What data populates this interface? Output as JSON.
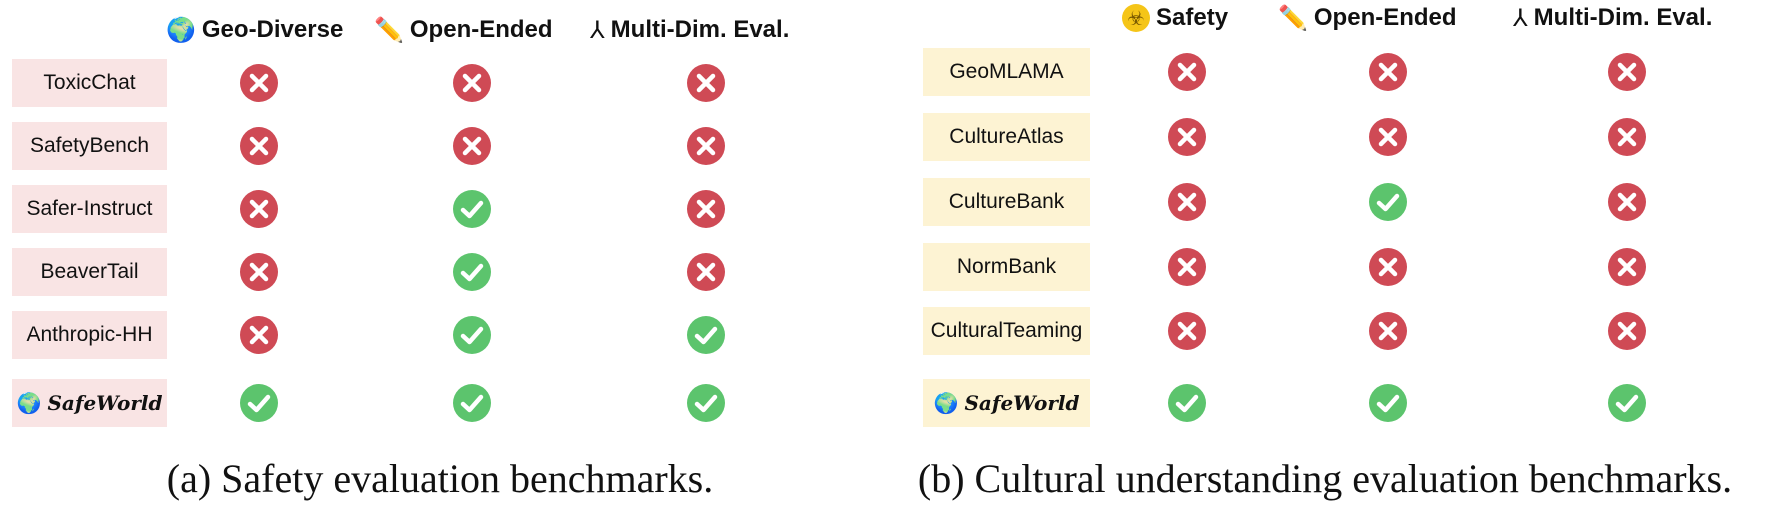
{
  "panel_a": {
    "columns": [
      {
        "icon": "globe-icon",
        "glyph": "🌍",
        "label": "Geo-Diverse"
      },
      {
        "icon": "pencil-icon",
        "glyph": "✏️",
        "label": "Open-Ended"
      },
      {
        "icon": "axes-icon",
        "glyph": "⅄",
        "label": "Multi-Dim. Eval."
      }
    ],
    "rows": [
      {
        "name": "ToxicChat",
        "values": [
          false,
          false,
          false
        ]
      },
      {
        "name": "SafetyBench",
        "values": [
          false,
          false,
          false
        ]
      },
      {
        "name": "Safer-Instruct",
        "values": [
          false,
          true,
          false
        ]
      },
      {
        "name": "BeaverTail",
        "values": [
          false,
          true,
          false
        ]
      },
      {
        "name": "Anthropic-HH",
        "values": [
          false,
          true,
          true
        ]
      },
      {
        "name": "SafeWorld",
        "values": [
          true,
          true,
          true
        ]
      }
    ],
    "caption": "(a) Safety evaluation benchmarks."
  },
  "panel_b": {
    "columns": [
      {
        "icon": "biohazard-icon",
        "glyph": "☣",
        "label": "Safety"
      },
      {
        "icon": "pencil-icon",
        "glyph": "✏️",
        "label": "Open-Ended"
      },
      {
        "icon": "axes-icon",
        "glyph": "⅄",
        "label": "Multi-Dim. Eval."
      }
    ],
    "rows": [
      {
        "name": "GeoMLAMA",
        "values": [
          false,
          false,
          false
        ]
      },
      {
        "name": "CultureAtlas",
        "values": [
          false,
          false,
          false
        ]
      },
      {
        "name": "CultureBank",
        "values": [
          false,
          true,
          false
        ]
      },
      {
        "name": "NormBank",
        "values": [
          false,
          false,
          false
        ]
      },
      {
        "name": "CulturalTeaming",
        "values": [
          false,
          false,
          false
        ]
      },
      {
        "name": "SafeWorld",
        "values": [
          true,
          true,
          true
        ]
      }
    ],
    "caption": "(b) Cultural understanding evaluation benchmarks."
  },
  "colors": {
    "check": "#5cc46d",
    "cross": "#cf4a55",
    "panel_a_label_bg": "#f9e4e4",
    "panel_b_label_bg": "#fdf3d3"
  }
}
